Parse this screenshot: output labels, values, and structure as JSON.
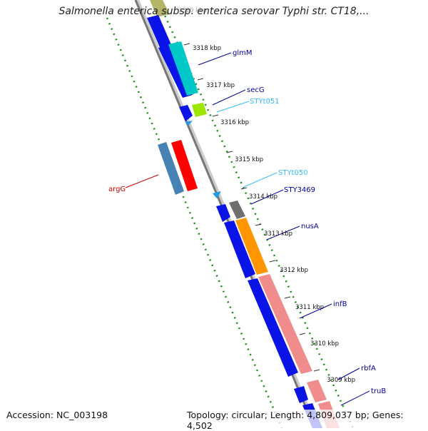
{
  "title": "Salmonella enterica subsp. enterica serovar Typhi str. CT18,...",
  "footer": {
    "accession": "Accession: NC_003198",
    "topology": "Topology: circular; Length: 4,809,037 bp; Genes: 4,502"
  },
  "kbp_labels": {
    "k3319": "3319 kbp",
    "k3318": "3318 kbp",
    "k3317": "3317 kbp",
    "k3316": "3316 kbp",
    "k3315": "3315 kbp",
    "k3314": "3314 kbp",
    "k3313": "3313 kbp",
    "k3312": "3312 kbp",
    "k3311": "3311 kbp",
    "k3310": "3310 kbp",
    "k3309": "3309 kbp"
  },
  "genes": {
    "glmM": "glmM",
    "secG": "secG",
    "STYt051": "STYt051",
    "STYt050": "STYt050",
    "STY3469": "STY3469",
    "nusA": "nusA",
    "infB": "infB",
    "rbfA": "rbfA",
    "truB": "truB",
    "argG": "argG"
  },
  "colors": {
    "cds_blue": "#0a14e6",
    "cds_cyan": "#00c8c8",
    "cds_lime": "#9ee600",
    "trna": "#1e9be6",
    "orange": "#ff9600",
    "salmon": "#f08c8c",
    "steel": "#4682b4",
    "red": "#ff0000",
    "gray": "#6e6e6e",
    "gc_dots": "#1a8a1a",
    "label_blue": "#000099",
    "label_cyan": "#33bbff",
    "label_red": "#cc0000"
  }
}
